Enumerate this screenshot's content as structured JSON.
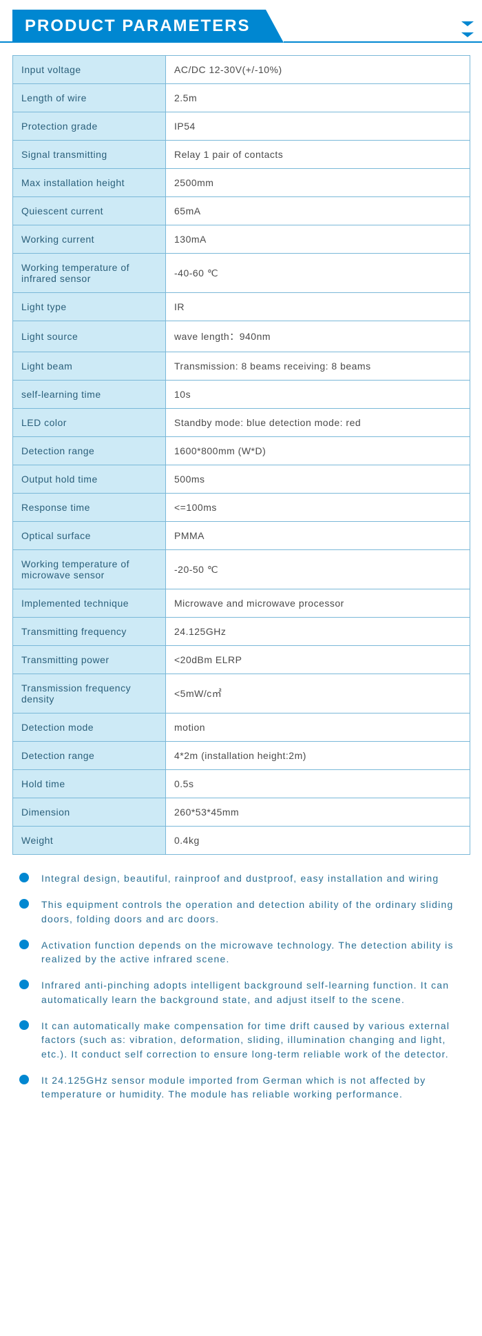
{
  "header": {
    "title": "PRODUCT PARAMETERS"
  },
  "colors": {
    "primary": "#0087d1",
    "label_bg": "#cdeaf6",
    "border": "#7ab8d8",
    "label_text": "#2a5f7a",
    "value_text": "#4a4a4a",
    "bullet_text": "#2a6f94"
  },
  "table": {
    "rows": [
      {
        "label": "Input voltage",
        "value": "AC/DC 12-30V(+/-10%)"
      },
      {
        "label": "Length of wire",
        "value": "2.5m"
      },
      {
        "label": "Protection grade",
        "value": "IP54"
      },
      {
        "label": "Signal transmitting",
        "value": "Relay    1 pair of contacts"
      },
      {
        "label": "Max installation height",
        "value": "2500mm"
      },
      {
        "label": "Quiescent current",
        "value": "65mA"
      },
      {
        "label": "Working current",
        "value": "130mA"
      },
      {
        "label": "Working temperature of infrared sensor",
        "value": "-40-60 ℃"
      },
      {
        "label": "Light type",
        "value": "IR"
      },
      {
        "label": "Light source",
        "value": "wave length：940nm"
      },
      {
        "label": "Light beam",
        "value": "Transmission: 8 beams      receiving: 8 beams"
      },
      {
        "label": "self-learning time",
        "value": "10s"
      },
      {
        "label": "LED color",
        "value": "Standby mode: blue   detection mode: red"
      },
      {
        "label": "Detection range",
        "value": "1600*800mm (W*D)"
      },
      {
        "label": "Output hold time",
        "value": "500ms"
      },
      {
        "label": "Response time",
        "value": "<=100ms"
      },
      {
        "label": "Optical surface",
        "value": "PMMA"
      },
      {
        "label": "Working temperature of microwave sensor",
        "value": "-20-50 ℃"
      },
      {
        "label": "Implemented technique",
        "value": "Microwave and microwave processor"
      },
      {
        "label": "Transmitting frequency",
        "value": "24.125GHz"
      },
      {
        "label": "Transmitting power",
        "value": "<20dBm ELRP"
      },
      {
        "label": "Transmission frequency  density",
        "value": "<5mW/c㎡"
      },
      {
        "label": "Detection mode",
        "value": "motion"
      },
      {
        "label": "Detection range",
        "value": "4*2m (installation height:2m)"
      },
      {
        "label": "Hold time",
        "value": "0.5s"
      },
      {
        "label": "Dimension",
        "value": "260*53*45mm"
      },
      {
        "label": "Weight",
        "value": "0.4kg"
      }
    ]
  },
  "bullets": [
    "Integral design, beautiful, rainproof and dustproof,  easy installation and wiring",
    "This equipment controls the operation and detection ability of the ordinary sliding doors, folding doors and arc doors.",
    "Activation function depends on the microwave technology.  The detection ability is realized by the active infrared scene.",
    "Infrared anti-pinching adopts intelligent background self-learning function. It can automatically learn the background state, and adjust itself to the scene.",
    "It can automatically make compensation for time drift caused by various external factors (such as: vibration, deformation, sliding, illumination changing and light, etc.).  It conduct self correction to ensure long-term reliable work of the detector.",
    "It 24.125GHz sensor module imported from German which is not affected by temperature or humidity. The module has reliable working performance."
  ]
}
